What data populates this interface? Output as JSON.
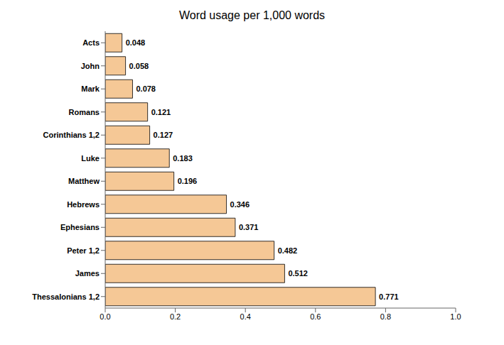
{
  "chart_data": {
    "type": "bar",
    "title": "Word usage per 1,000 words",
    "orientation": "horizontal",
    "categories": [
      "Acts",
      "John",
      "Mark",
      "Romans",
      "Corinthians 1,2",
      "Luke",
      "Matthew",
      "Hebrews",
      "Ephesians",
      "Peter 1,2",
      "James",
      "Thessalonians 1,2"
    ],
    "values": [
      0.048,
      0.058,
      0.078,
      0.121,
      0.127,
      0.183,
      0.196,
      0.346,
      0.371,
      0.482,
      0.512,
      0.771
    ],
    "color": "#F5C896",
    "xlim": [
      0,
      1
    ],
    "xticks": [
      {
        "value": 0,
        "label": "0.0"
      },
      0.2,
      0.4,
      0.6,
      0.8,
      {
        "value": 1,
        "label": "1.0"
      }
    ],
    "grid": false,
    "data_labels": true
  }
}
